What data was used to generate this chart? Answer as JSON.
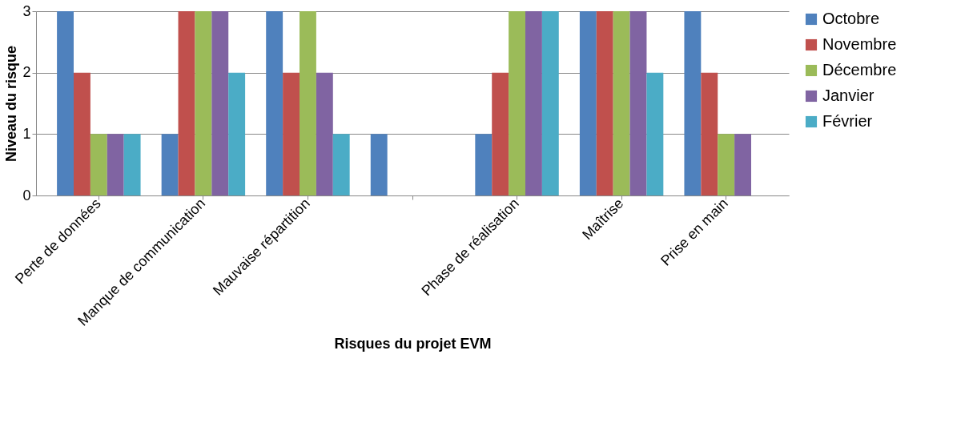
{
  "chart_data": {
    "type": "bar",
    "xlabel": "Risques du projet EVM",
    "ylabel": "Niveau du risque",
    "categories": [
      "Perte de données",
      "Manque de communication",
      "Mauvaise répartition",
      null,
      "Phase de réalisation",
      "Maîtrise",
      "Prise en main"
    ],
    "series": [
      {
        "name": "Octobre",
        "color": "#4f81bd",
        "values": [
          3,
          1,
          3,
          1,
          1,
          3,
          3
        ]
      },
      {
        "name": "Novembre",
        "color": "#c0504d",
        "values": [
          2,
          3,
          2,
          0,
          2,
          3,
          2
        ]
      },
      {
        "name": "Décembre",
        "color": "#9bbb59",
        "values": [
          1,
          3,
          3,
          0,
          3,
          3,
          1
        ]
      },
      {
        "name": "Janvier",
        "color": "#8064a2",
        "values": [
          1,
          3,
          2,
          0,
          3,
          3,
          1
        ]
      },
      {
        "name": "Février",
        "color": "#4bacc6",
        "values": [
          1,
          2,
          1,
          0,
          3,
          2,
          0
        ]
      }
    ],
    "ylim": [
      0,
      3
    ],
    "yticks": [
      0,
      1,
      2,
      3
    ],
    "grid": "y",
    "legend": "right"
  }
}
